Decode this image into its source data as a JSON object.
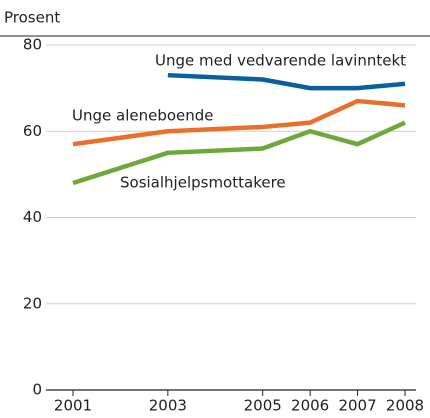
{
  "chart_data": {
    "type": "line",
    "y_label": "Prosent",
    "x": [
      2001,
      2003,
      2005,
      2006,
      2007,
      2008
    ],
    "xlim": [
      2001,
      2008
    ],
    "xticks": [
      2001,
      2003,
      2005,
      2006,
      2007,
      2008
    ],
    "ylim": [
      0,
      80
    ],
    "yticks": [
      0,
      20,
      40,
      60,
      80
    ],
    "grid": true,
    "series": [
      {
        "name": "Unge med vedvarende lavinntekt",
        "color": "#0a5fa0",
        "values": [
          null,
          73,
          72,
          70,
          70,
          71
        ]
      },
      {
        "name": "Unge aleneboende",
        "color": "#e8702a",
        "values": [
          57,
          60,
          61,
          62,
          67,
          66
        ]
      },
      {
        "name": "Sosialhjelpsmottakere",
        "color": "#6fa83a",
        "values": [
          48,
          55,
          56,
          60,
          57,
          62
        ]
      }
    ]
  }
}
